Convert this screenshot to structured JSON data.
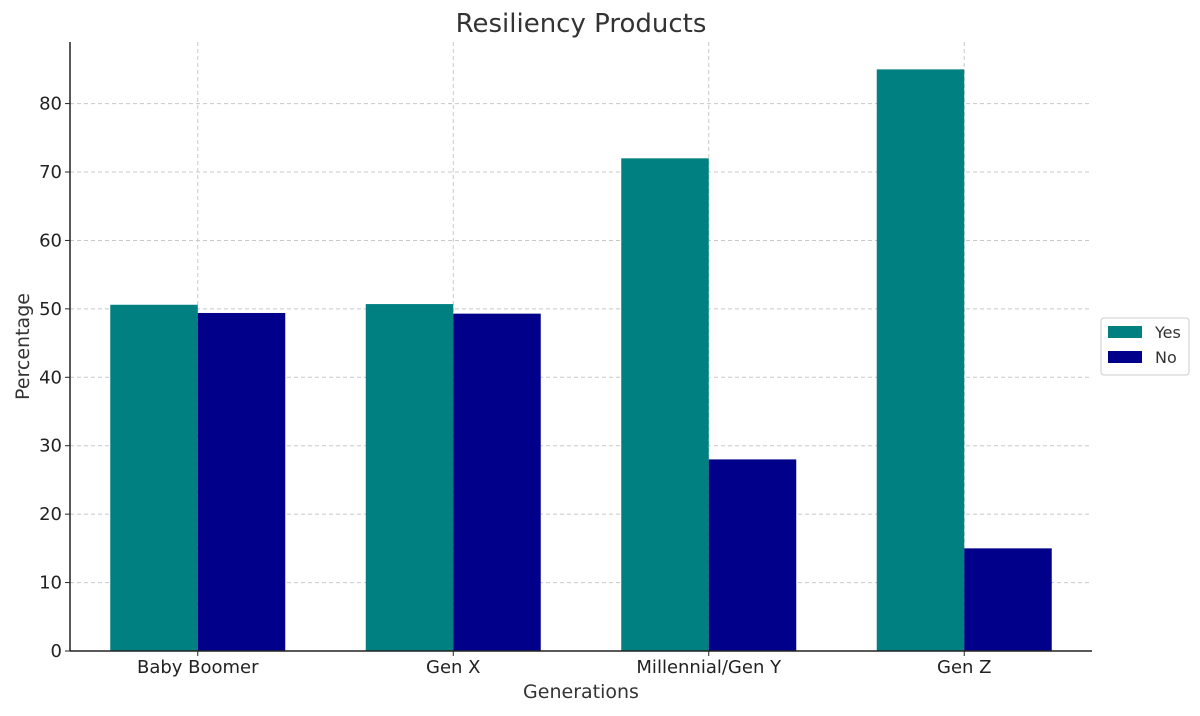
{
  "chart_data": {
    "type": "bar",
    "title": "Resiliency Products",
    "xlabel": "Generations",
    "ylabel": "Percentage",
    "categories": [
      "Baby Boomer",
      "Gen X",
      "Millennial/Gen Y",
      "Gen Z"
    ],
    "series": [
      {
        "name": "Yes",
        "color": "#008080",
        "values": [
          50.6,
          50.7,
          72,
          85
        ]
      },
      {
        "name": "No",
        "color": "#00008b",
        "values": [
          49.4,
          49.3,
          28,
          15
        ]
      }
    ],
    "ylim": [
      0,
      89
    ],
    "yticks": [
      0,
      10,
      20,
      30,
      40,
      50,
      60,
      70,
      80
    ],
    "grid": true,
    "legend_position": "right"
  }
}
